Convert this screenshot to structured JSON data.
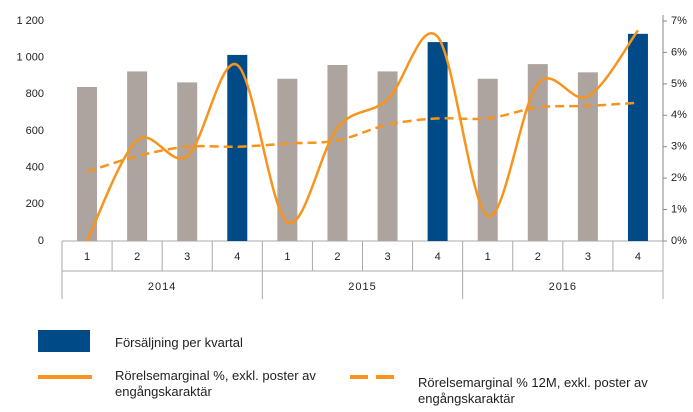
{
  "chart_data": {
    "type": "bar-line",
    "categories": [
      "1",
      "2",
      "3",
      "4",
      "1",
      "2",
      "3",
      "4",
      "1",
      "2",
      "3",
      "4"
    ],
    "groups": [
      "2014",
      "2015",
      "2016"
    ],
    "ylim": [
      0,
      1200
    ],
    "yticks": [
      0,
      200,
      400,
      600,
      800,
      {
        "value": 1000,
        "label": "1 000"
      },
      {
        "value": 1200,
        "label": "1 200"
      }
    ],
    "y2lim": [
      0,
      7
    ],
    "y2ticks": [
      {
        "value": 0,
        "label": "0%"
      },
      {
        "value": 1,
        "label": "1%"
      },
      {
        "value": 2,
        "label": "2%"
      },
      {
        "value": 3,
        "label": "3%"
      },
      {
        "value": 4,
        "label": "4%"
      },
      {
        "value": 5,
        "label": "5%"
      },
      {
        "value": 6,
        "label": "6%"
      },
      {
        "value": 7,
        "label": "7%"
      }
    ],
    "series": [
      {
        "name": "Försäljning per kvartal",
        "type": "bar",
        "color": "#004b87",
        "colors": [
          "#aea49f",
          "#aea49f",
          "#aea49f",
          "#004b87",
          "#aea49f",
          "#aea49f",
          "#aea49f",
          "#004b87",
          "#aea49f",
          "#aea49f",
          "#aea49f",
          "#004b87"
        ],
        "values": [
          840,
          925,
          865,
          1015,
          885,
          960,
          925,
          1085,
          885,
          965,
          920,
          1130
        ]
      },
      {
        "name": "Rörelsemarginal %, exkl. poster av engångskaraktär",
        "type": "line",
        "axis": "y2",
        "color": "#f7941d",
        "smooth": true,
        "values": [
          0,
          3.2,
          2.7,
          5.6,
          0.6,
          3.6,
          4.5,
          6.5,
          0.8,
          5.0,
          4.6,
          6.7
        ]
      },
      {
        "name": "Rörelsemarginal % 12M, exkl. poster av engångskaraktär",
        "type": "line",
        "axis": "y2",
        "color": "#f7941d",
        "dashed": true,
        "smooth": true,
        "values": [
          2.2,
          2.7,
          3.0,
          3.0,
          3.1,
          3.2,
          3.7,
          3.9,
          3.9,
          4.25,
          4.3,
          4.4
        ]
      }
    ]
  }
}
